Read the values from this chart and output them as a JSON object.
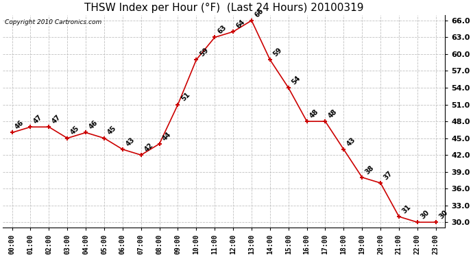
{
  "title": "THSW Index per Hour (°F)  (Last 24 Hours) 20100319",
  "copyright": "Copyright 2010 Cartronics.com",
  "hours": [
    "00:00",
    "01:00",
    "02:00",
    "03:00",
    "04:00",
    "05:00",
    "06:00",
    "07:00",
    "08:00",
    "09:00",
    "10:00",
    "11:00",
    "12:00",
    "13:00",
    "14:00",
    "15:00",
    "16:00",
    "17:00",
    "18:00",
    "19:00",
    "20:00",
    "21:00",
    "22:00",
    "23:00"
  ],
  "values": [
    46,
    47,
    47,
    45,
    46,
    45,
    43,
    42,
    44,
    51,
    59,
    63,
    64,
    66,
    59,
    54,
    48,
    48,
    43,
    38,
    37,
    31,
    30,
    30
  ],
  "line_color": "#cc0000",
  "bg_color": "#ffffff",
  "grid_color": "#c0c0c0",
  "ylim_min": 29.0,
  "ylim_max": 67.0,
  "ytick_min": 30.0,
  "ytick_max": 66.0,
  "ytick_step": 3.0,
  "title_fontsize": 11,
  "label_fontsize": 7,
  "annotation_fontsize": 7
}
